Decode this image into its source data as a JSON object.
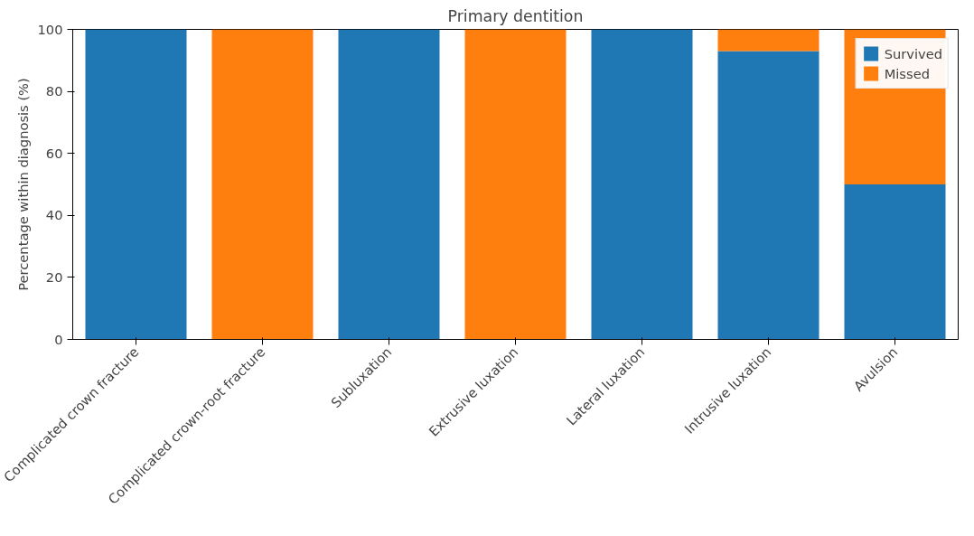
{
  "chart_data": {
    "type": "bar",
    "title": "Primary dentition",
    "ylabel": "Percentage within diagnosis (%)",
    "categories": [
      "Complicated crown fracture",
      "Complicated crown-root fracture",
      "Subluxation",
      "Extrusive luxation",
      "Lateral luxation",
      "Intrusive luxation",
      "Avulsion"
    ],
    "series": [
      {
        "name": "Survived",
        "color": "#1f77b4",
        "values": [
          100,
          0,
          100,
          0,
          100,
          93,
          50
        ]
      },
      {
        "name": "Missed",
        "color": "#ff7f0e",
        "values": [
          0,
          100,
          0,
          100,
          0,
          7,
          50
        ]
      }
    ],
    "stacked": true,
    "ylim": [
      0,
      100
    ],
    "yticks": [
      0,
      20,
      40,
      60,
      80,
      100
    ],
    "grid": false,
    "legend": "top right"
  }
}
